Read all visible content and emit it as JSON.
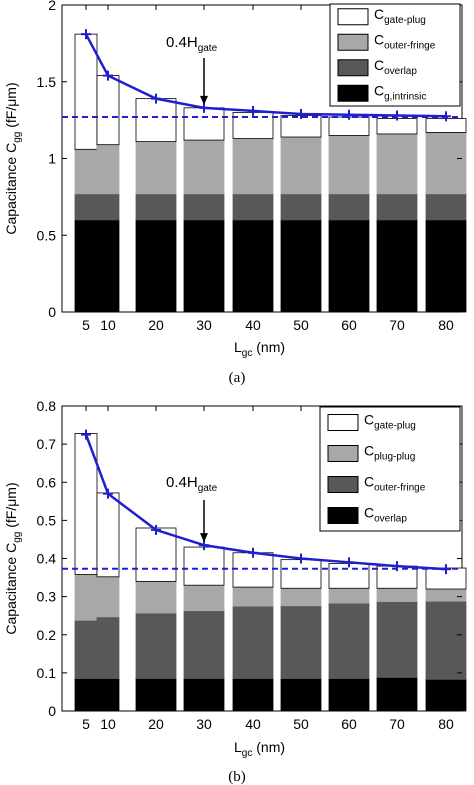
{
  "chart_data": [
    {
      "type": "bar",
      "panel_label": "(a)",
      "stacked": true,
      "x": [
        5,
        10,
        20,
        30,
        40,
        50,
        60,
        70,
        80
      ],
      "xticks": [
        "5",
        "10",
        "20",
        "30",
        "40",
        "50",
        "60",
        "70",
        "80"
      ],
      "xlabel_main": "L",
      "xlabel_sub": "gc",
      "xlabel_unit": " (nm)",
      "ylabel_main": "Capacitance C",
      "ylabel_sub": "gg",
      "ylabel_unit": " (fF/μm)",
      "ylim": [
        0,
        2
      ],
      "yticks": [
        "0",
        "0.5",
        "1",
        "1.5",
        "2"
      ],
      "ytick_values": [
        0,
        0.5,
        1,
        1.5,
        2
      ],
      "legend_position": "top-right",
      "series": [
        {
          "name_main": "C",
          "name_sub": "g,intrinsic",
          "color": "#000000",
          "values": [
            0.6,
            0.6,
            0.6,
            0.6,
            0.6,
            0.6,
            0.6,
            0.6,
            0.6
          ]
        },
        {
          "name_main": "C",
          "name_sub": "overlap",
          "color": "#585858",
          "values": [
            0.17,
            0.17,
            0.17,
            0.17,
            0.17,
            0.17,
            0.17,
            0.17,
            0.17
          ]
        },
        {
          "name_main": "C",
          "name_sub": "outer-fringe",
          "color": "#a8a8a8",
          "values": [
            0.29,
            0.32,
            0.34,
            0.35,
            0.36,
            0.37,
            0.38,
            0.39,
            0.4
          ]
        },
        {
          "name_main": "C",
          "name_sub": "gate-plug",
          "color": "#ffffff",
          "values": [
            0.75,
            0.45,
            0.28,
            0.21,
            0.17,
            0.14,
            0.12,
            0.1,
            0.09
          ]
        }
      ],
      "line": {
        "color": "#1f1fd0",
        "x": [
          5,
          10,
          20,
          30,
          40,
          50,
          60,
          70,
          80
        ],
        "y": [
          1.81,
          1.54,
          1.39,
          1.33,
          1.31,
          1.29,
          1.285,
          1.28,
          1.275
        ]
      },
      "reference_line": {
        "y": 1.27,
        "style": "dashed",
        "color": "#1f1fd0"
      },
      "annotation": {
        "text_main": "0.4H",
        "text_sub": "gate",
        "x": 30
      }
    },
    {
      "type": "bar",
      "panel_label": "(b)",
      "stacked": true,
      "x": [
        5,
        10,
        20,
        30,
        40,
        50,
        60,
        70,
        80
      ],
      "xticks": [
        "5",
        "10",
        "20",
        "30",
        "40",
        "50",
        "60",
        "70",
        "80"
      ],
      "xlabel_main": "L",
      "xlabel_sub": "gc",
      "xlabel_unit": " (nm)",
      "ylabel_main": "Capacitance C",
      "ylabel_sub": "gg",
      "ylabel_unit": " (fF/μm)",
      "ylim": [
        0,
        0.8
      ],
      "yticks": [
        "0",
        "0.1",
        "0.2",
        "0.3",
        "0.4",
        "0.5",
        "0.6",
        "0.7",
        "0.8"
      ],
      "ytick_values": [
        0,
        0.1,
        0.2,
        0.3,
        0.4,
        0.5,
        0.6,
        0.7,
        0.8
      ],
      "legend_position": "top-right",
      "series": [
        {
          "name_main": "C",
          "name_sub": "overlap",
          "color": "#000000",
          "values": [
            0.085,
            0.085,
            0.085,
            0.085,
            0.085,
            0.085,
            0.085,
            0.088,
            0.083
          ]
        },
        {
          "name_main": "C",
          "name_sub": "outer-fringe",
          "color": "#585858",
          "values": [
            0.153,
            0.162,
            0.172,
            0.178,
            0.19,
            0.191,
            0.198,
            0.199,
            0.205
          ]
        },
        {
          "name_main": "C",
          "name_sub": "plug-plug",
          "color": "#a8a8a8",
          "values": [
            0.12,
            0.105,
            0.083,
            0.067,
            0.05,
            0.046,
            0.039,
            0.035,
            0.032
          ]
        },
        {
          "name_main": "C",
          "name_sub": "gate-plug",
          "color": "#ffffff",
          "values": [
            0.37,
            0.22,
            0.14,
            0.1,
            0.09,
            0.075,
            0.065,
            0.058,
            0.055
          ]
        }
      ],
      "line": {
        "color": "#1f1fd0",
        "x": [
          5,
          10,
          20,
          30,
          40,
          50,
          60,
          70,
          80
        ],
        "y": [
          0.725,
          0.57,
          0.475,
          0.435,
          0.415,
          0.4,
          0.39,
          0.38,
          0.372
        ]
      },
      "reference_line": {
        "y": 0.373,
        "style": "dashed",
        "color": "#1f1fd0"
      },
      "annotation": {
        "text_main": "0.4H",
        "text_sub": "gate",
        "x": 30
      }
    }
  ]
}
